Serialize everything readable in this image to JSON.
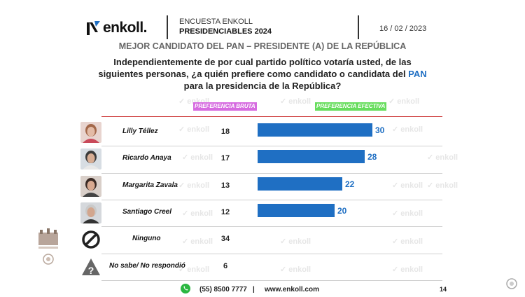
{
  "header": {
    "logo_text": "enkoll.",
    "survey_line1": "ENCUESTA ENKOLL",
    "survey_line2": "PRESIDENCIABLES 2024",
    "date": "16 / 02 / 2023"
  },
  "subtitle": "MEJOR CANDIDATO DEL PAN – PRESIDENTE (A) DE LA REPÚBLICA",
  "question": {
    "line1": "Independientemente de por cual partido político votaría usted, de las",
    "line2_pre": "siguientes personas, ¿a quién prefiere como candidato o candidata del ",
    "line2_pan": "PAN",
    "line3": "para la presidencia de la República?"
  },
  "column_headers": {
    "bruta": "PREFERENCIA BRUTA",
    "efectiva": "PREFERENCIA EFECTIVA"
  },
  "watermark": "enkoll",
  "chart_data": {
    "type": "bar",
    "title": "MEJOR CANDIDATO DEL PAN – PRESIDENTE (A) DE LA REPÚBLICA",
    "categories": [
      "Lilly Téllez",
      "Ricardo Anaya",
      "Margarita Zavala",
      "Santiago Creel",
      "Ninguno",
      "No sabe/ No respondió"
    ],
    "series": [
      {
        "name": "PREFERENCIA BRUTA",
        "values": [
          18,
          17,
          13,
          12,
          34,
          6
        ]
      },
      {
        "name": "PREFERENCIA EFECTIVA",
        "values": [
          30,
          28,
          22,
          20,
          null,
          null
        ]
      }
    ],
    "bar_scale_max": 40,
    "colors": {
      "bar": "#1f6fc3"
    }
  },
  "footer": {
    "phone": "(55) 8500 7777",
    "separator": "|",
    "website": "www.enkoll.com",
    "page": "14"
  }
}
